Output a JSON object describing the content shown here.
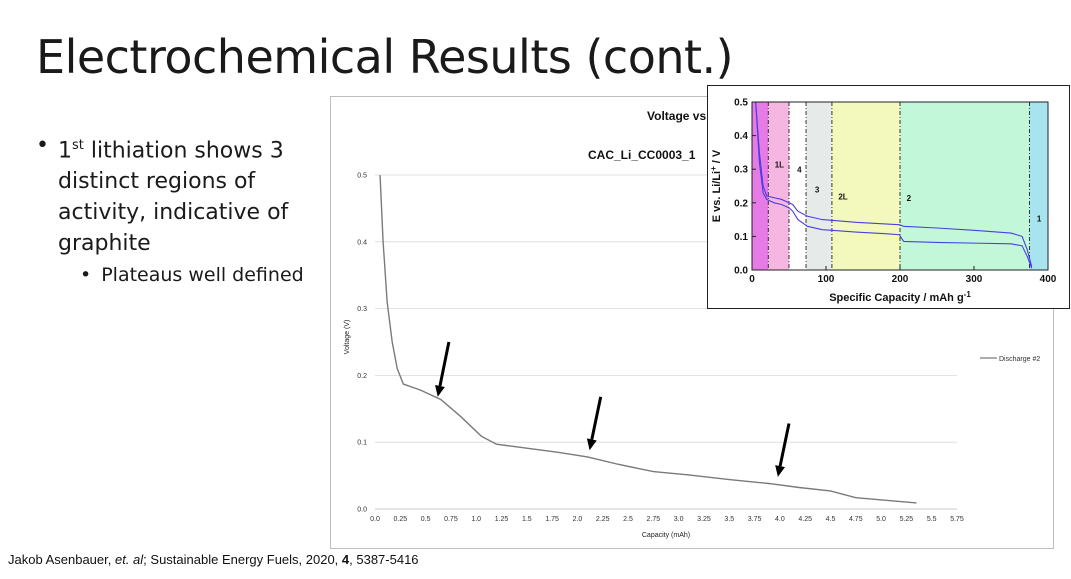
{
  "slide": {
    "title": "Electrochemical Results (cont.)",
    "bullet_1_pre": "1",
    "bullet_1_sup": "st",
    "bullet_1_post": " lithiation shows 3 distinct regions of activity, indicative of graphite",
    "bullet_2": "Plateaus well defined",
    "citation_pre": "Jakob Asenbauer, ",
    "citation_etal": "et. al",
    "citation_mid": "; Sustainable Energy Fuels, 2020, ",
    "citation_vol": "4",
    "citation_post": ", 5387-5416"
  },
  "chart_data": [
    {
      "type": "line",
      "title": "Voltage vs Capa",
      "subtitle": "CAC_Li_CC0003_1",
      "xlabel": "Capacity (mAh)",
      "ylabel": "Voltage (V)",
      "xlim": [
        0,
        5.75
      ],
      "ylim": [
        0,
        0.5
      ],
      "xticks": [
        "0.0",
        "0.25",
        "0.5",
        "0.75",
        "1.0",
        "1.25",
        "1.5",
        "1.75",
        "2.0",
        "2.25",
        "2.5",
        "2.75",
        "3.0",
        "3.25",
        "3.5",
        "3.75",
        "4.0",
        "4.25",
        "4.5",
        "4.75",
        "5.0",
        "5.25",
        "5.5",
        "5.75"
      ],
      "yticks": [
        "0.0",
        "0.1",
        "0.2",
        "0.3",
        "0.4",
        "0.5"
      ],
      "grid": true,
      "legend": "right",
      "series": [
        {
          "name": "Discharge #2",
          "color": "#7a7a7a",
          "x": [
            0.05,
            0.08,
            0.12,
            0.17,
            0.22,
            0.28,
            0.45,
            0.65,
            0.85,
            1.05,
            1.2,
            1.5,
            1.8,
            2.1,
            2.4,
            2.75,
            3.1,
            3.5,
            3.9,
            4.2,
            4.5,
            4.75,
            5.05,
            5.35
          ],
          "y": [
            0.5,
            0.4,
            0.31,
            0.25,
            0.21,
            0.187,
            0.178,
            0.164,
            0.138,
            0.109,
            0.097,
            0.091,
            0.085,
            0.078,
            0.067,
            0.056,
            0.051,
            0.044,
            0.038,
            0.032,
            0.027,
            0.017,
            0.013,
            0.009
          ]
        }
      ],
      "arrows": [
        {
          "tip_x": 0.62,
          "tip_y": 0.168,
          "tail_x": 0.73,
          "tail_y": 0.25
        },
        {
          "tip_x": 2.12,
          "tip_y": 0.088,
          "tail_x": 2.23,
          "tail_y": 0.168
        },
        {
          "tip_x": 3.98,
          "tip_y": 0.048,
          "tail_x": 4.09,
          "tail_y": 0.128
        }
      ]
    },
    {
      "type": "line",
      "xlabel": "Specific Capacity / mAh g",
      "xlabel_sup": "-1",
      "ylabel_pre": "E vs. Li/Li",
      "ylabel_sup": "+",
      "ylabel_post": " / V",
      "xlim": [
        0,
        400
      ],
      "ylim": [
        0,
        0.5
      ],
      "xticks": [
        "0",
        "100",
        "200",
        "300",
        "400"
      ],
      "yticks": [
        "0.0",
        "0.1",
        "0.2",
        "0.3",
        "0.4",
        "0.5"
      ],
      "regions": [
        {
          "x0": 0,
          "x1": 22,
          "color": "#e77be6"
        },
        {
          "x0": 22,
          "x1": 50,
          "color": "#f6b6e2"
        },
        {
          "x0": 50,
          "x1": 73,
          "color": "#ffffff"
        },
        {
          "x0": 73,
          "x1": 108,
          "color": "#e6ebe9"
        },
        {
          "x0": 108,
          "x1": 200,
          "color": "#f3f9bd"
        },
        {
          "x0": 200,
          "x1": 375,
          "color": "#c3f7d9"
        },
        {
          "x0": 375,
          "x1": 400,
          "color": "#a8e4ef"
        }
      ],
      "dashed_lines": [
        22,
        50,
        73,
        108,
        200,
        375
      ],
      "labels": [
        {
          "text": "1L",
          "x": 37,
          "y": 0.305
        },
        {
          "text": "4",
          "x": 64,
          "y": 0.29
        },
        {
          "text": "3",
          "x": 88,
          "y": 0.23
        },
        {
          "text": "2L",
          "x": 123,
          "y": 0.21
        },
        {
          "text": "2",
          "x": 212,
          "y": 0.205
        },
        {
          "text": "1",
          "x": 388,
          "y": 0.145
        }
      ],
      "series": [
        {
          "color": "#4a3fe0",
          "x": [
            5,
            10,
            15,
            20,
            30,
            40,
            50,
            55,
            62,
            75,
            95,
            108,
            140,
            180,
            199,
            205,
            250,
            300,
            350,
            365,
            372,
            378
          ],
          "y": [
            0.5,
            0.35,
            0.25,
            0.22,
            0.215,
            0.21,
            0.2,
            0.195,
            0.175,
            0.16,
            0.15,
            0.148,
            0.142,
            0.137,
            0.135,
            0.13,
            0.125,
            0.118,
            0.11,
            0.1,
            0.06,
            0.01
          ]
        },
        {
          "color": "#4a3fe0",
          "x": [
            5,
            10,
            15,
            20,
            30,
            40,
            50,
            55,
            62,
            75,
            95,
            108,
            140,
            180,
            199,
            205,
            250,
            300,
            350,
            365,
            372,
            378
          ],
          "y": [
            0.5,
            0.32,
            0.23,
            0.21,
            0.2,
            0.195,
            0.185,
            0.175,
            0.15,
            0.13,
            0.12,
            0.118,
            0.113,
            0.108,
            0.105,
            0.085,
            0.082,
            0.08,
            0.078,
            0.072,
            0.04,
            0.005
          ]
        }
      ]
    }
  ]
}
